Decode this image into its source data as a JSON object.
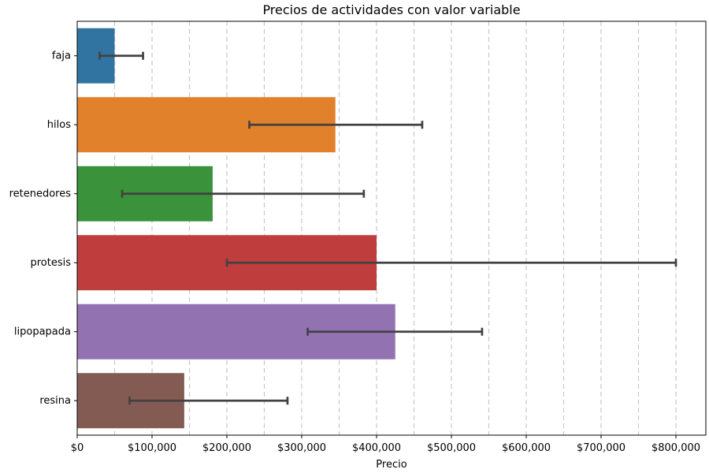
{
  "chart_data": {
    "type": "bar",
    "orientation": "horizontal",
    "title": "Precios de actividades con valor variable",
    "xlabel": "Precio",
    "ylabel": "",
    "xlim": [
      0,
      840000
    ],
    "x_ticks": [
      0,
      100000,
      200000,
      300000,
      400000,
      500000,
      600000,
      700000,
      800000
    ],
    "x_tick_labels": [
      "$0",
      "$100,000",
      "$200,000",
      "$300,000",
      "$400,000",
      "$500,000",
      "$600,000",
      "$700,000",
      "$800,000"
    ],
    "grid_lines_x": [
      50000,
      100000,
      150000,
      200000,
      250000,
      300000,
      350000,
      400000,
      450000,
      500000,
      550000,
      600000,
      650000,
      700000,
      750000,
      800000
    ],
    "grid": "vertical dashed",
    "categories": [
      "faja",
      "hilos",
      "retenedores",
      "protesis",
      "lipopapada",
      "resina"
    ],
    "values": [
      50000,
      345000,
      181000,
      400000,
      425000,
      143000
    ],
    "error_low": [
      30000,
      230000,
      60000,
      200000,
      308000,
      70000
    ],
    "error_high": [
      88000,
      461000,
      383000,
      800000,
      541000,
      281000
    ],
    "colors": [
      "#3274a1",
      "#e1812c",
      "#3a923a",
      "#c03d3e",
      "#9372b2",
      "#845b53"
    ],
    "error_color": "#424242"
  }
}
